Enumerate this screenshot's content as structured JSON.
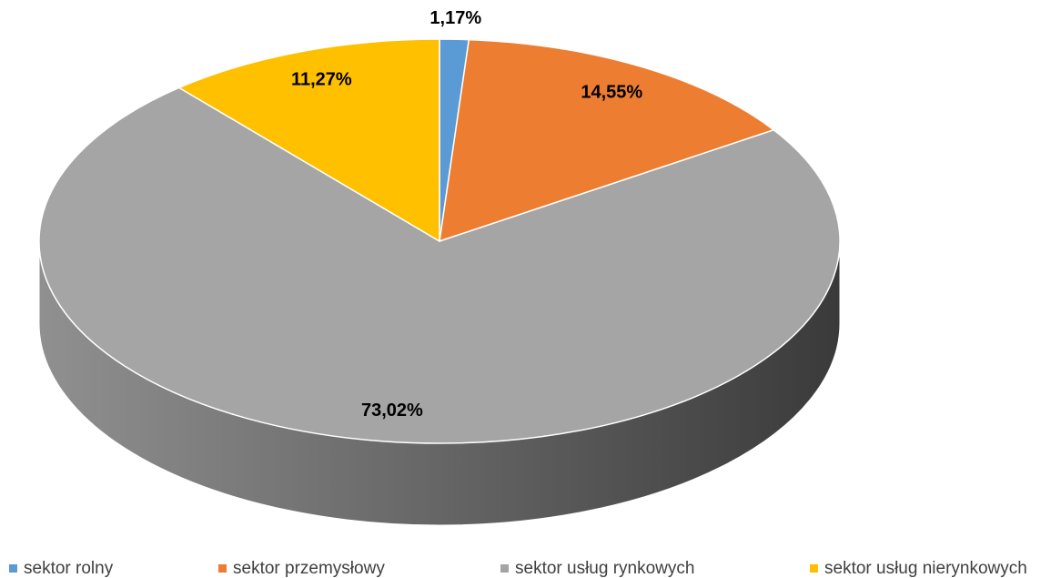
{
  "chart_data": {
    "type": "pie",
    "categories": [
      "sektor rolny",
      "sektor przemysłowy",
      "sektor usług rynkowych",
      "sektor usług nierynkowych"
    ],
    "values": [
      1.17,
      14.55,
      73.02,
      11.27
    ],
    "value_labels": [
      "1,17%",
      "14,55%",
      "73,02%",
      "11,27%"
    ],
    "colors": [
      "#5b9bd5",
      "#ed7d31",
      "#a5a5a5",
      "#ffc000"
    ],
    "legend": "bottom"
  }
}
